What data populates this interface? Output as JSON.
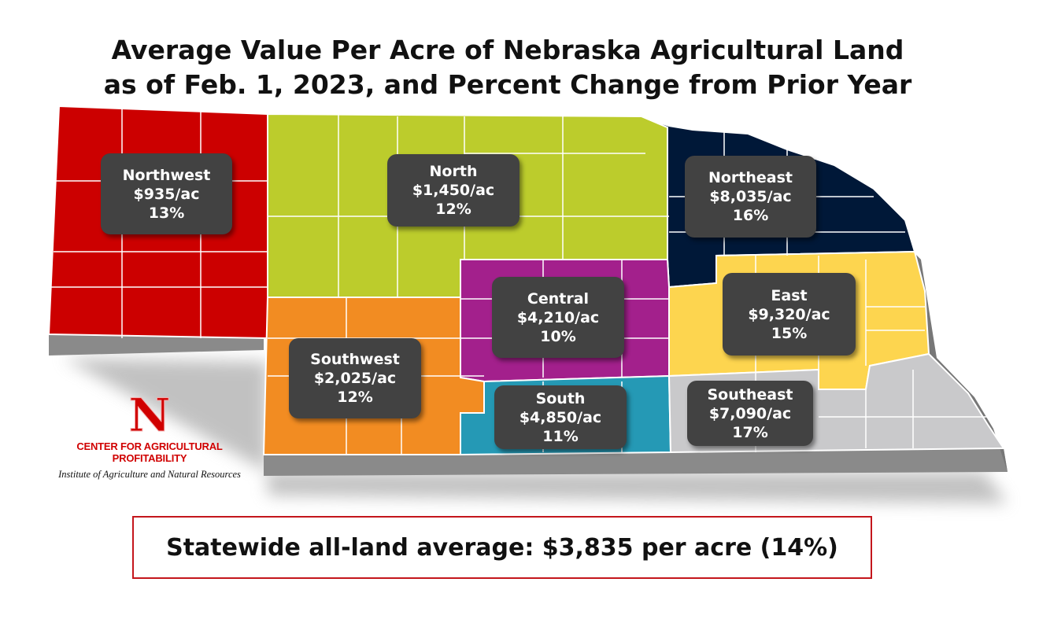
{
  "title": {
    "line1": "Average Value Per Acre of Nebraska Agricultural Land",
    "line2": "as of Feb. 1, 2023, and Percent Change from Prior Year"
  },
  "regions": [
    {
      "name": "Northwest",
      "value": "$935/ac",
      "change": "13%",
      "color": "#cc0000"
    },
    {
      "name": "North",
      "value": "$1,450/ac",
      "change": "12%",
      "color": "#bccc2c"
    },
    {
      "name": "Northeast",
      "value": "$8,035/ac",
      "change": "16%",
      "color": "#001838"
    },
    {
      "name": "Central",
      "value": "$4,210/ac",
      "change": "10%",
      "color": "#a3208c"
    },
    {
      "name": "East",
      "value": "$9,320/ac",
      "change": "15%",
      "color": "#fdd54f"
    },
    {
      "name": "Southwest",
      "value": "$2,025/ac",
      "change": "12%",
      "color": "#f28c22"
    },
    {
      "name": "South",
      "value": "$4,850/ac",
      "change": "11%",
      "color": "#2599b5"
    },
    {
      "name": "Southeast",
      "value": "$7,090/ac",
      "change": "17%",
      "color": "#c9c9cb"
    }
  ],
  "logo": {
    "mark": "N",
    "center": "CENTER FOR AGRICULTURAL PROFITABILITY",
    "institute": "Institute of Agriculture and Natural Resources"
  },
  "statewide": "Statewide all-land average: $3,835 per acre (14%)"
}
